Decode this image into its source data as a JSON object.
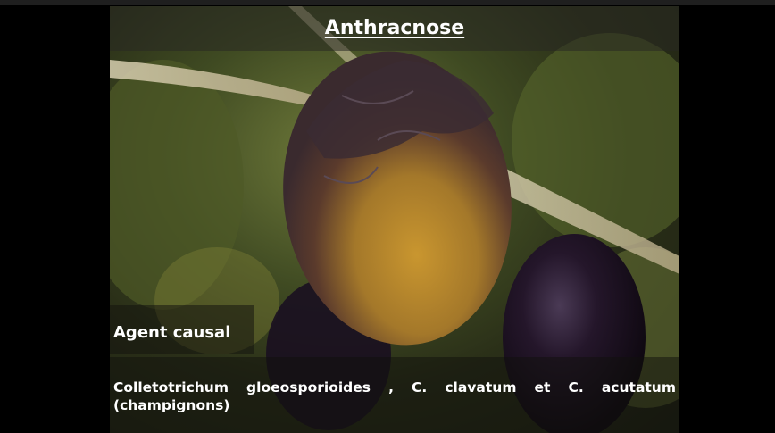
{
  "slide": {
    "title": "Anthracnose",
    "agent_label": "Agent causal",
    "description": "Colletotrichum gloeosporioides , C. clavatum et C. acutatum (champignons)"
  },
  "photo": {
    "subject": "diseased olive fruit with anthracnose lesions",
    "colors": {
      "fruit_dark": "#3a2a2e",
      "fruit_lesion": "#b58a2e",
      "olive_dark": "#1a0f1c",
      "foliage": "#5d6b2e"
    }
  }
}
